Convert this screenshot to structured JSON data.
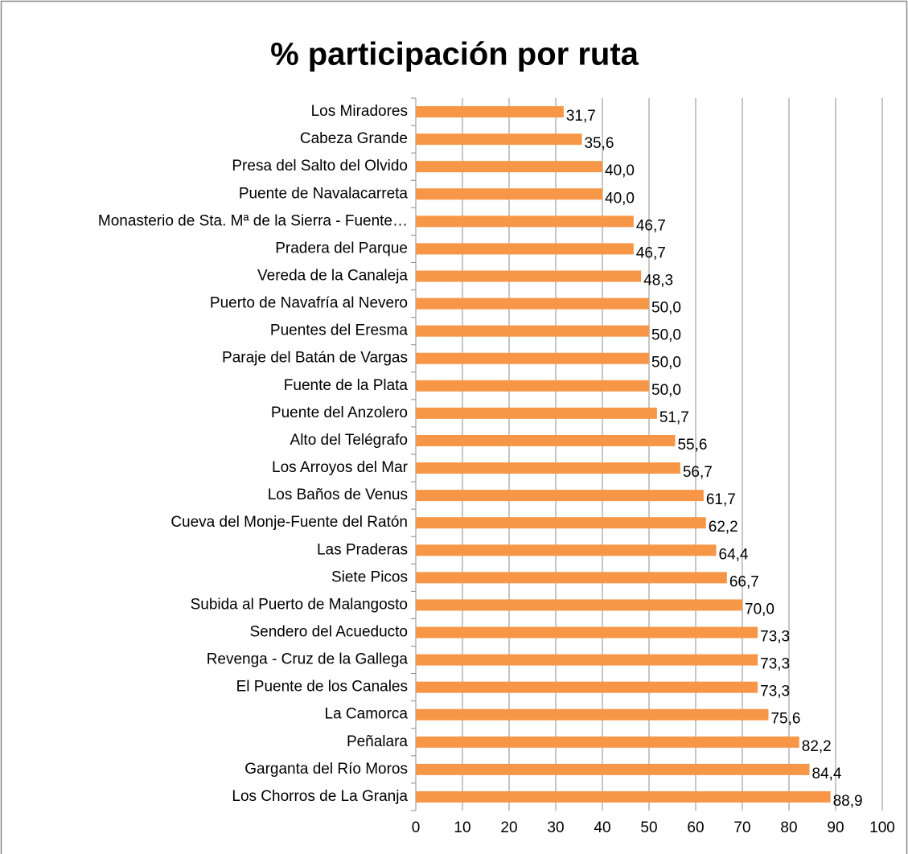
{
  "chart_data": {
    "type": "bar",
    "orientation": "horizontal",
    "title": "% participación por ruta",
    "categories": [
      "Los Miradores",
      "Cabeza Grande",
      "Presa del Salto del Olvido",
      "Puente de Navalacarreta",
      "Monasterio de Sta. Mª de la Sierra - Fuente…",
      "Pradera del Parque",
      "Vereda de la Canaleja",
      "Puerto de Navafría al Nevero",
      "Puentes del Eresma",
      "Paraje del Batán de Vargas",
      "Fuente de la Plata",
      "Puente del Anzolero",
      "Alto del Telégrafo",
      "Los Arroyos del Mar",
      "Los Baños de Venus",
      "Cueva del Monje-Fuente del Ratón",
      "Las Praderas",
      "Siete Picos",
      "Subida al Puerto de Malangosto",
      "Sendero del Acueducto",
      "Revenga - Cruz de la Gallega",
      "El Puente de los Canales",
      "La Camorca",
      "Peñalara",
      "Garganta del Río Moros",
      "Los Chorros de La Granja"
    ],
    "values": [
      31.7,
      35.6,
      40.0,
      40.0,
      46.7,
      46.7,
      48.3,
      50.0,
      50.0,
      50.0,
      50.0,
      51.7,
      55.6,
      56.7,
      61.7,
      62.2,
      64.4,
      66.7,
      70.0,
      73.3,
      73.3,
      73.3,
      75.6,
      82.2,
      84.4,
      88.9
    ],
    "value_labels": [
      "31,7",
      "35,6",
      "40,0",
      "40,0",
      "46,7",
      "46,7",
      "48,3",
      "50,0",
      "50,0",
      "50,0",
      "50,0",
      "51,7",
      "55,6",
      "56,7",
      "61,7",
      "62,2",
      "64,4",
      "66,7",
      "70,0",
      "73,3",
      "73,3",
      "73,3",
      "75,6",
      "82,2",
      "84,4",
      "88,9"
    ],
    "color": "#f79646",
    "xlim": [
      0,
      100
    ],
    "xticks": [
      0,
      10,
      20,
      30,
      40,
      50,
      60,
      70,
      80,
      90,
      100
    ],
    "grid": true
  }
}
